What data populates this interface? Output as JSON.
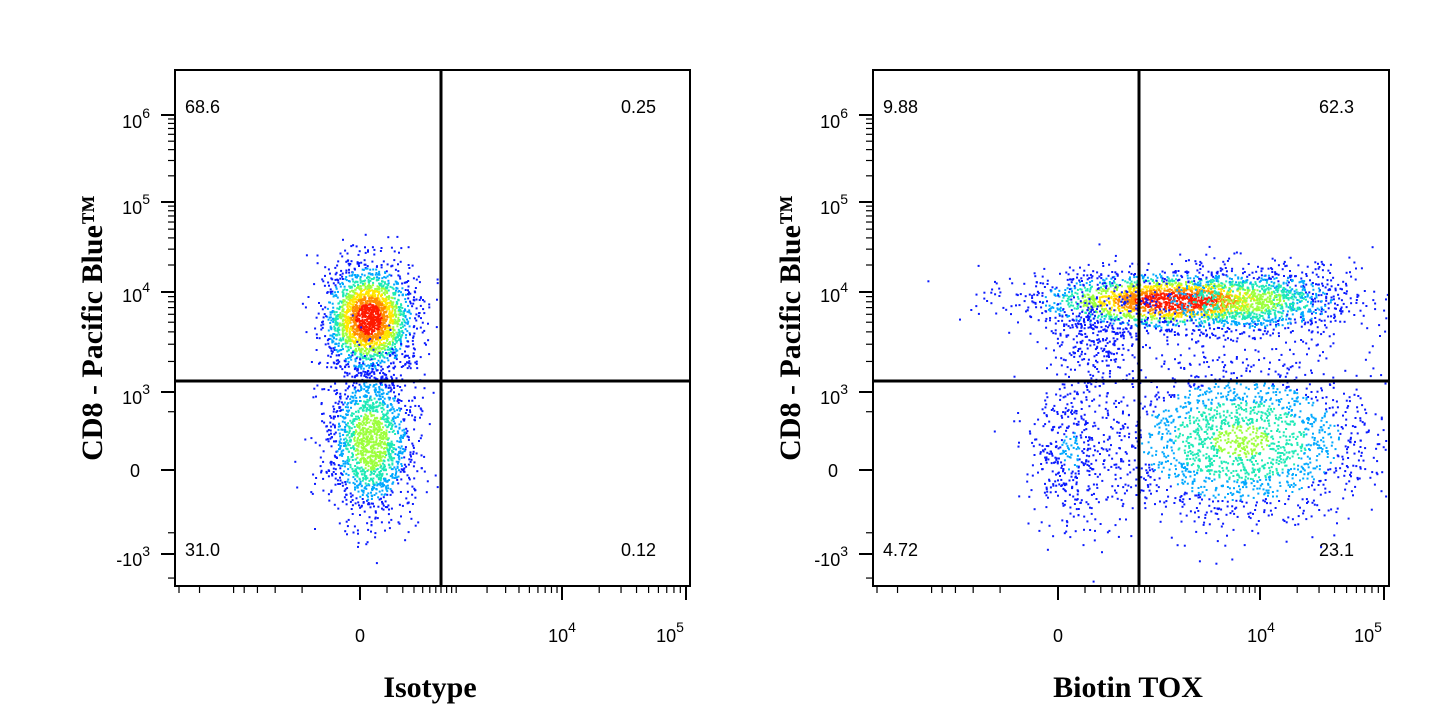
{
  "chart_data": [
    {
      "type": "scatter",
      "subtype": "flow-cytometry-density-dot-plot",
      "xlabel": "Isotype",
      "ylabel": "CD8 - Pacific Blue™",
      "x_scale": "biexponential",
      "y_scale": "biexponential",
      "x_ticks": [
        {
          "value": 0,
          "label": "0"
        },
        {
          "value": 10000,
          "label_base": "10",
          "label_exp": "4"
        },
        {
          "value": 100000,
          "label_base": "10",
          "label_exp": "5"
        }
      ],
      "y_ticks": [
        {
          "value": 1000000,
          "label_base": "10",
          "label_exp": "6"
        },
        {
          "value": 100000,
          "label_base": "10",
          "label_exp": "5"
        },
        {
          "value": 10000,
          "label_base": "10",
          "label_exp": "4"
        },
        {
          "value": 1000,
          "label_base": "10",
          "label_exp": "3"
        },
        {
          "value": 0,
          "label": "0"
        },
        {
          "value": -1000,
          "label_base": "-10",
          "label_exp": "3"
        }
      ],
      "quadrant_gate": {
        "x": 700,
        "y": 1250
      },
      "quadrants": {
        "top_left": "68.6",
        "top_right": "0.25",
        "bottom_left": "31.0",
        "bottom_right": "0.12"
      },
      "populations": [
        {
          "x_center": 0,
          "y_center": 5000,
          "share": 0.686
        },
        {
          "x_center": 0,
          "y_center": 200,
          "share": 0.31
        }
      ]
    },
    {
      "type": "scatter",
      "subtype": "flow-cytometry-density-dot-plot",
      "xlabel": "Biotin TOX",
      "ylabel": "CD8 - Pacific Blue™",
      "x_scale": "biexponential",
      "y_scale": "biexponential",
      "x_ticks": [
        {
          "value": 0,
          "label": "0"
        },
        {
          "value": 10000,
          "label_base": "10",
          "label_exp": "4"
        },
        {
          "value": 100000,
          "label_base": "10",
          "label_exp": "5"
        }
      ],
      "y_ticks": [
        {
          "value": 1000000,
          "label_base": "10",
          "label_exp": "6"
        },
        {
          "value": 100000,
          "label_base": "10",
          "label_exp": "5"
        },
        {
          "value": 10000,
          "label_base": "10",
          "label_exp": "4"
        },
        {
          "value": 1000,
          "label_base": "10",
          "label_exp": "3"
        },
        {
          "value": 0,
          "label": "0"
        },
        {
          "value": -1000,
          "label_base": "-10",
          "label_exp": "3"
        }
      ],
      "quadrant_gate": {
        "x": 700,
        "y": 1250
      },
      "quadrants": {
        "top_left": "9.88",
        "top_right": "62.3",
        "bottom_left": "4.72",
        "bottom_right": "23.1"
      },
      "populations": [
        {
          "x_center": 2500,
          "y_center": 8000,
          "share": 0.623
        },
        {
          "x_center": 8000,
          "y_center": 200,
          "share": 0.231
        },
        {
          "x_center": 0,
          "y_center": 7000,
          "share": 0.099
        },
        {
          "x_center": 0,
          "y_center": 100,
          "share": 0.047
        }
      ]
    }
  ],
  "colors": {
    "axis": "#000000",
    "density_low": "#0000ff",
    "density_mid": "#00e0c0",
    "density_high": "#ffff00",
    "density_peak": "#ff0000"
  }
}
